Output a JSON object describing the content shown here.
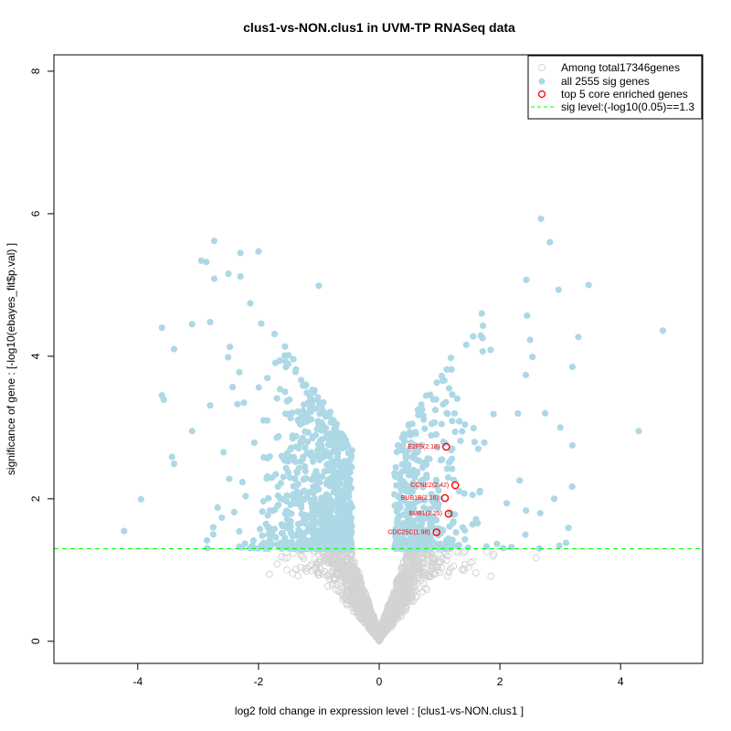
{
  "chart_data": {
    "type": "scatter",
    "title": "clus1-vs-NON.clus1 in UVM-TP RNASeq data",
    "xlabel": "log2 fold change in expression level : [clus1-vs-NON.clus1 ]",
    "ylabel": "significance of gene : [-log10(ebayes_fit$p.val) ]",
    "xlim": [
      -5.39,
      5.36
    ],
    "ylim": [
      -0.31,
      8.23
    ],
    "xticks": [
      -4,
      -2,
      0,
      2,
      4
    ],
    "yticks": [
      0,
      2,
      4,
      6,
      8
    ],
    "grid": false,
    "legend_position": "top-right",
    "legend": [
      "Among total17346genes",
      "all 2555 sig genes",
      "top 5 core enriched genes",
      "sig level:(-log10(0.05)==1.3"
    ],
    "sig_threshold": 1.3,
    "total_genes": 17346,
    "sig_genes": 2555,
    "colors": {
      "nonsig": "#d3d3d3",
      "sig": "#add8e6",
      "top": "#ff0000",
      "threshold": "#00ff00"
    },
    "top_genes": [
      {
        "label": "E2F5(2.18)",
        "x": 1.11,
        "y": 2.73
      },
      {
        "label": "CCNE2(2.42)",
        "x": 1.26,
        "y": 2.19
      },
      {
        "label": "BUB1B(2.16)",
        "x": 1.09,
        "y": 2.01
      },
      {
        "label": "BUB1(2.25)",
        "x": 1.15,
        "y": 1.79
      },
      {
        "label": "CDC25C(1.98)",
        "x": 0.95,
        "y": 1.53
      }
    ],
    "notable_sig_points": [
      [
        2.68,
        5.93
      ],
      [
        3.47,
        5.0
      ],
      [
        4.7,
        4.36
      ],
      [
        -2.0,
        5.47
      ],
      [
        -2.3,
        5.45
      ],
      [
        -2.3,
        5.12
      ],
      [
        -1.0,
        4.99
      ],
      [
        -3.6,
        4.4
      ],
      [
        -3.4,
        4.1
      ],
      [
        -3.1,
        4.45
      ],
      [
        -3.6,
        3.45
      ],
      [
        -3.57,
        3.39
      ],
      [
        -3.4,
        2.49
      ],
      [
        4.3,
        2.95
      ],
      [
        3.3,
        4.27
      ],
      [
        3.2,
        3.85
      ],
      [
        2.9,
        2.0
      ],
      [
        1.7,
        4.6
      ],
      [
        2.45,
        4.57
      ],
      [
        2.5,
        4.23
      ],
      [
        -2.8,
        4.48
      ],
      [
        -2.75,
        1.6
      ],
      [
        -2.75,
        1.5
      ],
      [
        -3.1,
        2.95
      ],
      [
        3.0,
        3.0
      ],
      [
        3.2,
        2.75
      ],
      [
        2.75,
        3.2
      ]
    ]
  }
}
